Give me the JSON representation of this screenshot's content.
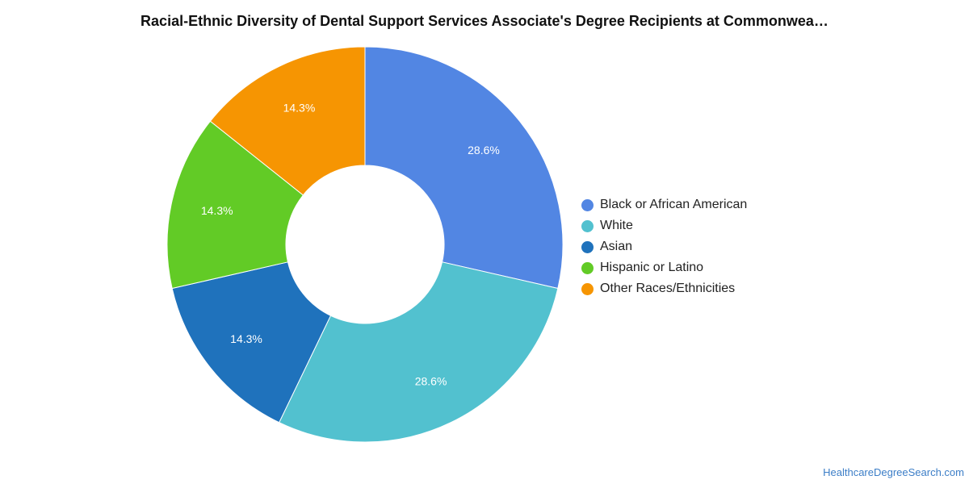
{
  "chart_data": {
    "type": "pie",
    "variant": "donut",
    "title": "Racial-Ethnic Diversity of Dental Support Services Associate's Degree Recipients at Commonwea…",
    "legend_position": "right",
    "categories": [
      "Black or African American",
      "White",
      "Asian",
      "Hispanic or Latino",
      "Other Races/Ethnicities"
    ],
    "values": [
      28.6,
      28.6,
      14.3,
      14.3,
      14.3
    ],
    "value_labels": [
      "28.6%",
      "28.6%",
      "14.3%",
      "14.3%",
      "14.3%"
    ],
    "colors": [
      "#5286e3",
      "#52c1cf",
      "#1f72bc",
      "#62cb26",
      "#f69502"
    ]
  },
  "footer": {
    "source": "HealthcareDegreeSearch.com"
  }
}
